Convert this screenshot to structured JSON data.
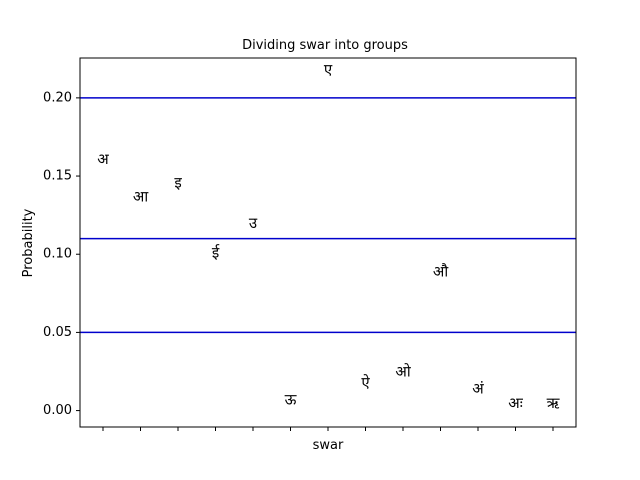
{
  "chart_data": {
    "type": "scatter",
    "title": "Dividing swar into groups",
    "xlabel": "swar",
    "ylabel": "Probability",
    "ylim": [
      -0.0105,
      0.2255
    ],
    "yticks": [
      0.0,
      0.05,
      0.1,
      0.15,
      0.2
    ],
    "ytick_labels": [
      "0.00",
      "0.05",
      "0.10",
      "0.15",
      "0.20"
    ],
    "x_tick_count": 13,
    "grid": false,
    "points": [
      {
        "label": "अ",
        "x": 0,
        "y": 0.161
      },
      {
        "label": "आ",
        "x": 1,
        "y": 0.137
      },
      {
        "label": "इ",
        "x": 2,
        "y": 0.146
      },
      {
        "label": "ई",
        "x": 3,
        "y": 0.101
      },
      {
        "label": "उ",
        "x": 4,
        "y": 0.12
      },
      {
        "label": "ऊ",
        "x": 5,
        "y": 0.007
      },
      {
        "label": "ए",
        "x": 6,
        "y": 0.218
      },
      {
        "label": "ऐ",
        "x": 7,
        "y": 0.018
      },
      {
        "label": "ओ",
        "x": 8,
        "y": 0.025
      },
      {
        "label": "औ",
        "x": 9,
        "y": 0.089
      },
      {
        "label": "अं",
        "x": 10,
        "y": 0.014
      },
      {
        "label": "अः",
        "x": 11,
        "y": 0.005
      },
      {
        "label": "ऋ",
        "x": 12,
        "y": 0.005
      }
    ],
    "hlines": [
      {
        "y": 0.2,
        "color": "#0000cc"
      },
      {
        "y": 0.11,
        "color": "#0000cc"
      },
      {
        "y": 0.05,
        "color": "#0000cc"
      }
    ]
  }
}
